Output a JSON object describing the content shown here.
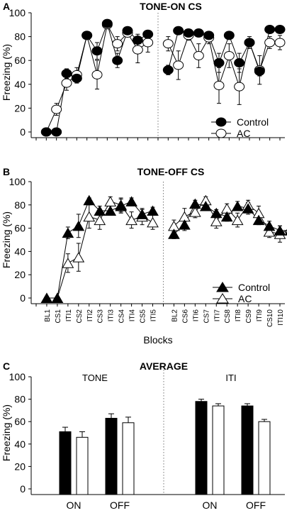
{
  "chart_data": [
    {
      "panel_label": "A",
      "type": "line",
      "title": "TONE-ON CS",
      "ylabel": "Freezing (%)",
      "ylim": [
        0,
        100
      ],
      "yticks": [
        0,
        20,
        40,
        60,
        80,
        100
      ],
      "x_positions": 25,
      "series": [
        {
          "name": "Control",
          "marker": "circle",
          "fill": "#000000",
          "x": [
            1,
            2,
            3,
            4,
            5,
            6,
            7,
            8,
            9,
            10,
            11,
            13,
            14,
            15,
            16,
            17,
            18,
            19,
            20,
            21,
            22,
            23,
            24
          ],
          "values": [
            0,
            0,
            49,
            45,
            81,
            68,
            91,
            60,
            85,
            77,
            82,
            52,
            85,
            83,
            83,
            81,
            58,
            81,
            58,
            75,
            51,
            86,
            86
          ],
          "errors": [
            1,
            1,
            4,
            4,
            2,
            7,
            2,
            6,
            2,
            5,
            3,
            4,
            3,
            3,
            3,
            3,
            8,
            3,
            8,
            3,
            4,
            3,
            3
          ]
        },
        {
          "name": "AC",
          "marker": "circle",
          "fill": "#ffffff",
          "x": [
            1,
            2,
            3,
            4,
            5,
            6,
            7,
            8,
            9,
            10,
            11,
            13,
            14,
            15,
            16,
            17,
            18,
            19,
            20,
            21,
            22,
            23,
            24
          ],
          "values": [
            0,
            19,
            41,
            48,
            81,
            48,
            90,
            74,
            83,
            69,
            75,
            74,
            56,
            81,
            64,
            79,
            39,
            64,
            38,
            75,
            52,
            75,
            75
          ],
          "errors": [
            1,
            5,
            6,
            6,
            2,
            12,
            2,
            6,
            3,
            11,
            8,
            6,
            12,
            4,
            10,
            5,
            15,
            10,
            15,
            5,
            12,
            5,
            6
          ]
        }
      ],
      "legend": {
        "placement": "lower-right",
        "entries": [
          "Control",
          "AC"
        ]
      }
    },
    {
      "panel_label": "B",
      "type": "line",
      "title": "TONE-OFF CS",
      "ylabel": "Freezing (%)",
      "xlabel": "Blocks",
      "ylim": [
        0,
        100
      ],
      "yticks": [
        0,
        20,
        40,
        60,
        80,
        100
      ],
      "categories": [
        "BL1",
        "CS1",
        "ITI1",
        "CS2",
        "ITI2",
        "CS3",
        "ITI3",
        "CS4",
        "ITI4",
        "CS5",
        "ITI5",
        "",
        "BL2",
        "CS6",
        "ITI6",
        "CS7",
        "ITI7",
        "CS8",
        "ITI8",
        "CS9",
        "ITI9",
        "CS10",
        "ITI10"
      ],
      "series": [
        {
          "name": "Control",
          "marker": "triangle",
          "fill": "#000000",
          "x": [
            1,
            2,
            3,
            4,
            5,
            6,
            7,
            8,
            9,
            10,
            11,
            13,
            14,
            15,
            16,
            17,
            18,
            19,
            20,
            21,
            22,
            23,
            24
          ],
          "values": [
            0,
            0,
            56,
            62,
            84,
            75,
            75,
            79,
            83,
            72,
            75,
            55,
            63,
            81,
            79,
            73,
            70,
            79,
            77,
            67,
            62,
            58,
            58
          ],
          "errors": [
            1,
            1,
            5,
            10,
            2,
            4,
            4,
            6,
            3,
            4,
            3,
            4,
            5,
            3,
            3,
            3,
            4,
            4,
            5,
            4,
            4,
            4,
            4
          ]
        },
        {
          "name": "AC",
          "marker": "triangle",
          "fill": "#ffffff",
          "x": [
            1,
            2,
            3,
            4,
            5,
            6,
            7,
            8,
            9,
            10,
            11,
            13,
            14,
            15,
            16,
            17,
            18,
            19,
            20,
            21,
            22,
            23,
            24
          ],
          "values": [
            0,
            0,
            30,
            35,
            70,
            67,
            83,
            80,
            67,
            70,
            65,
            62,
            70,
            74,
            84,
            66,
            77,
            67,
            80,
            73,
            57,
            55,
            60
          ],
          "errors": [
            1,
            1,
            8,
            12,
            10,
            8,
            4,
            6,
            7,
            7,
            6,
            5,
            7,
            5,
            3,
            6,
            4,
            6,
            4,
            6,
            5,
            7,
            4
          ]
        }
      ],
      "legend": {
        "placement": "lower-right",
        "entries": [
          "Control",
          "AC"
        ]
      }
    },
    {
      "panel_label": "C",
      "type": "bar",
      "title": "AVERAGE",
      "ylabel": "Freezing (%)",
      "ylim": [
        0,
        100
      ],
      "yticks": [
        0,
        20,
        40,
        60,
        80,
        100
      ],
      "group_labels": [
        "TONE",
        "ITI"
      ],
      "categories": [
        "ON",
        "OFF",
        "ON",
        "OFF"
      ],
      "series": [
        {
          "name": "Control",
          "fill": "#000000",
          "values": [
            51,
            63,
            78,
            74
          ],
          "errors": [
            4,
            4,
            2,
            2
          ]
        },
        {
          "name": "AC",
          "fill": "#ffffff",
          "values": [
            46,
            59,
            74,
            60
          ],
          "errors": [
            5,
            5,
            2,
            2
          ]
        }
      ]
    }
  ]
}
